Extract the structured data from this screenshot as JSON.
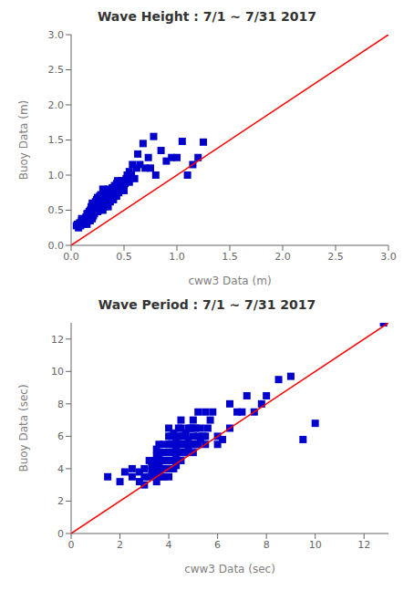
{
  "chart_data": [
    {
      "type": "scatter",
      "title": "Wave Height : 7/1 ~ 7/31 2017",
      "x_label": "cww3 Data (m)",
      "y_label": "Buoy Data (m)",
      "xlim": [
        0,
        3
      ],
      "ylim": [
        0,
        3
      ],
      "xticks": [
        {
          "value": 0,
          "label": "0.0"
        },
        0.5,
        {
          "value": 1.0,
          "label": "1.0"
        },
        1.5,
        {
          "value": 2.0,
          "label": "2.0"
        },
        2.5,
        {
          "value": 3.0,
          "label": "3.0"
        }
      ],
      "yticks": [
        {
          "value": 0,
          "label": "0.0"
        },
        0.5,
        {
          "value": 1.0,
          "label": "1.0"
        },
        1.5,
        {
          "value": 2.0,
          "label": "2.0"
        },
        2.5,
        {
          "value": 3.0,
          "label": "3.0"
        }
      ],
      "series": [
        {
          "type": "scatter",
          "color": "#0000CD",
          "marker": "square",
          "x": [
            0.05,
            0.06,
            0.07,
            0.08,
            0.09,
            0.1,
            0.1,
            0.1,
            0.11,
            0.11,
            0.12,
            0.12,
            0.13,
            0.13,
            0.14,
            0.14,
            0.15,
            0.15,
            0.15,
            0.15,
            0.16,
            0.16,
            0.16,
            0.17,
            0.17,
            0.17,
            0.18,
            0.18,
            0.18,
            0.18,
            0.19,
            0.19,
            0.19,
            0.19,
            0.2,
            0.2,
            0.2,
            0.2,
            0.2,
            0.2,
            0.21,
            0.21,
            0.21,
            0.21,
            0.22,
            0.22,
            0.22,
            0.23,
            0.23,
            0.23,
            0.24,
            0.24,
            0.24,
            0.25,
            0.25,
            0.25,
            0.25,
            0.26,
            0.26,
            0.26,
            0.27,
            0.27,
            0.27,
            0.28,
            0.28,
            0.28,
            0.29,
            0.29,
            0.3,
            0.3,
            0.3,
            0.3,
            0.3,
            0.31,
            0.31,
            0.32,
            0.32,
            0.32,
            0.33,
            0.33,
            0.34,
            0.34,
            0.35,
            0.35,
            0.35,
            0.36,
            0.36,
            0.37,
            0.37,
            0.38,
            0.38,
            0.39,
            0.39,
            0.4,
            0.4,
            0.41,
            0.41,
            0.42,
            0.43,
            0.43,
            0.44,
            0.44,
            0.45,
            0.45,
            0.46,
            0.47,
            0.48,
            0.48,
            0.49,
            0.5,
            0.5,
            0.51,
            0.52,
            0.53,
            0.55,
            0.55,
            0.57,
            0.58,
            0.6,
            0.62,
            0.63,
            0.65,
            0.68,
            0.7,
            0.73,
            0.75,
            0.78,
            0.8,
            0.85,
            0.9,
            0.95,
            1.0,
            1.05,
            1.1,
            1.15,
            1.2,
            1.25
          ],
          "values": [
            0.28,
            0.3,
            0.25,
            0.32,
            0.28,
            0.3,
            0.35,
            0.38,
            0.32,
            0.36,
            0.3,
            0.35,
            0.33,
            0.38,
            0.35,
            0.4,
            0.3,
            0.35,
            0.4,
            0.45,
            0.35,
            0.4,
            0.45,
            0.38,
            0.42,
            0.48,
            0.35,
            0.4,
            0.45,
            0.5,
            0.4,
            0.45,
            0.5,
            0.55,
            0.38,
            0.42,
            0.47,
            0.5,
            0.55,
            0.6,
            0.42,
            0.48,
            0.52,
            0.58,
            0.45,
            0.5,
            0.55,
            0.48,
            0.55,
            0.62,
            0.5,
            0.55,
            0.65,
            0.48,
            0.53,
            0.58,
            0.68,
            0.5,
            0.55,
            0.65,
            0.52,
            0.6,
            0.7,
            0.55,
            0.62,
            0.72,
            0.58,
            0.65,
            0.5,
            0.55,
            0.62,
            0.7,
            0.8,
            0.58,
            0.65,
            0.55,
            0.65,
            0.75,
            0.6,
            0.7,
            0.62,
            0.72,
            0.55,
            0.65,
            0.8,
            0.65,
            0.75,
            0.62,
            0.75,
            0.65,
            0.78,
            0.68,
            0.82,
            0.65,
            0.78,
            0.7,
            0.85,
            0.75,
            0.7,
            0.88,
            0.78,
            0.92,
            0.75,
            0.88,
            0.82,
            0.8,
            0.78,
            0.92,
            0.85,
            0.78,
            0.92,
            0.88,
            0.95,
            1.0,
            0.9,
            1.05,
            1.0,
            1.15,
            0.95,
            1.1,
            1.3,
            1.15,
            1.45,
            1.1,
            1.25,
            1.1,
            1.55,
            1.0,
            1.35,
            1.2,
            1.25,
            1.25,
            1.48,
            1.0,
            1.15,
            1.25,
            1.47
          ]
        },
        {
          "type": "line",
          "color": "#FF0000",
          "x": [
            0,
            3
          ],
          "values": [
            0,
            3
          ]
        }
      ]
    },
    {
      "type": "scatter",
      "title": "Wave Period : 7/1 ~ 7/31 2017",
      "x_label": "cww3 Data (sec)",
      "y_label": "Buoy Data (sec)",
      "xlim": [
        0,
        13
      ],
      "ylim": [
        0,
        13
      ],
      "xticks": [
        0,
        2,
        4,
        6,
        8,
        10,
        12
      ],
      "yticks": [
        0,
        2,
        4,
        6,
        8,
        10,
        12
      ],
      "series": [
        {
          "type": "scatter",
          "color": "#0000CD",
          "marker": "square",
          "x": [
            1.5,
            2.0,
            2.2,
            2.5,
            2.5,
            2.8,
            2.8,
            3.0,
            3.0,
            3.0,
            3.2,
            3.2,
            3.3,
            3.3,
            3.4,
            3.4,
            3.5,
            3.5,
            3.5,
            3.5,
            3.5,
            3.6,
            3.6,
            3.6,
            3.6,
            3.7,
            3.7,
            3.7,
            3.7,
            3.8,
            3.8,
            3.8,
            3.8,
            3.8,
            3.9,
            3.9,
            3.9,
            4.0,
            4.0,
            4.0,
            4.0,
            4.0,
            4.0,
            4.0,
            4.1,
            4.1,
            4.1,
            4.1,
            4.1,
            4.2,
            4.2,
            4.2,
            4.2,
            4.2,
            4.3,
            4.3,
            4.3,
            4.3,
            4.4,
            4.4,
            4.4,
            4.4,
            4.4,
            4.5,
            4.5,
            4.5,
            4.5,
            4.5,
            4.5,
            4.6,
            4.6,
            4.6,
            4.7,
            4.7,
            4.7,
            4.8,
            4.8,
            4.8,
            4.9,
            4.9,
            5.0,
            5.0,
            5.0,
            5.0,
            5.0,
            5.1,
            5.1,
            5.2,
            5.2,
            5.2,
            5.3,
            5.3,
            5.4,
            5.5,
            5.5,
            5.5,
            5.6,
            5.7,
            5.8,
            6.0,
            6.0,
            6.2,
            6.5,
            6.5,
            6.8,
            7.0,
            7.2,
            7.5,
            7.8,
            8.0,
            8.5,
            9.0,
            9.5,
            10.0,
            12.8
          ],
          "values": [
            3.5,
            3.2,
            3.8,
            3.5,
            4.0,
            3.2,
            3.8,
            3.0,
            3.5,
            4.0,
            3.5,
            4.5,
            3.8,
            4.2,
            3.5,
            4.5,
            3.2,
            3.8,
            4.2,
            4.8,
            5.2,
            3.8,
            4.2,
            4.8,
            5.5,
            3.5,
            4.0,
            4.5,
            5.0,
            3.5,
            4.0,
            4.5,
            5.0,
            5.5,
            4.0,
            4.5,
            5.0,
            3.5,
            4.0,
            4.5,
            5.0,
            5.5,
            6.0,
            6.5,
            4.0,
            4.5,
            5.0,
            5.5,
            6.0,
            4.0,
            4.5,
            5.0,
            5.5,
            6.2,
            4.2,
            4.8,
            5.2,
            5.8,
            4.5,
            5.0,
            5.5,
            6.0,
            6.5,
            4.5,
            5.0,
            5.5,
            6.0,
            6.5,
            7.0,
            5.0,
            5.5,
            6.0,
            5.0,
            5.5,
            6.2,
            5.2,
            5.8,
            6.5,
            5.5,
            6.5,
            5.0,
            5.5,
            6.0,
            6.5,
            7.0,
            5.5,
            6.5,
            5.5,
            6.0,
            7.5,
            5.8,
            6.5,
            6.0,
            5.5,
            6.0,
            7.5,
            6.5,
            7.0,
            7.5,
            5.5,
            6.0,
            5.8,
            6.5,
            8.0,
            7.5,
            7.5,
            8.5,
            7.5,
            8.0,
            8.5,
            9.5,
            9.7,
            5.8,
            6.8,
            13.0
          ]
        },
        {
          "type": "line",
          "color": "#FF0000",
          "x": [
            0,
            13
          ],
          "values": [
            0,
            13
          ]
        }
      ]
    }
  ]
}
